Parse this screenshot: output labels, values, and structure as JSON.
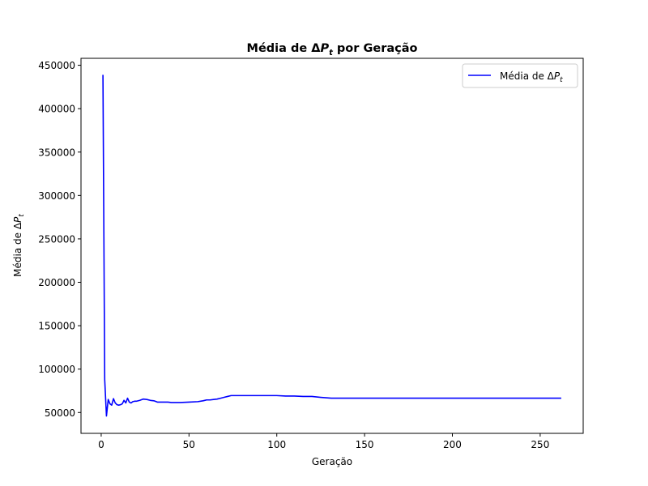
{
  "chart_data": {
    "type": "line",
    "title_prefix": "Média de Δ",
    "title_var": "P",
    "title_sub": "t",
    "title_suffix": " por Geração",
    "xlabel": "Geração",
    "ylabel_prefix": "Média de Δ",
    "ylabel_var": "P",
    "ylabel_sub": "t",
    "xlim": [
      -11.5,
      274.5
    ],
    "ylim": [
      26000,
      458000
    ],
    "xticks": [
      0,
      50,
      100,
      150,
      200,
      250
    ],
    "yticks": [
      50000,
      100000,
      150000,
      200000,
      250000,
      300000,
      350000,
      400000,
      450000
    ],
    "grid": false,
    "legend_position": "upper right",
    "series": [
      {
        "legend_prefix": "Média de Δ",
        "legend_var": "P",
        "legend_sub": "t",
        "color": "#0000ff",
        "x": [
          1,
          2,
          3,
          4,
          5,
          6,
          7,
          8,
          9,
          10,
          11,
          12,
          13,
          14,
          15,
          16,
          17,
          18,
          19,
          20,
          22,
          24,
          26,
          28,
          30,
          32,
          34,
          36,
          38,
          40,
          45,
          50,
          55,
          58,
          60,
          62,
          64,
          66,
          68,
          70,
          72,
          74,
          80,
          90,
          100,
          105,
          110,
          115,
          120,
          125,
          128,
          131,
          140,
          150,
          200,
          250,
          262
        ],
        "y": [
          439000,
          88000,
          46000,
          65000,
          60000,
          58500,
          66000,
          61000,
          59000,
          58500,
          59000,
          60000,
          64000,
          61000,
          66500,
          62000,
          61000,
          62500,
          63000,
          63000,
          64000,
          65500,
          65000,
          64000,
          63500,
          62000,
          62000,
          62000,
          62000,
          61500,
          61500,
          62000,
          62500,
          63500,
          64500,
          64500,
          65000,
          65500,
          66500,
          67500,
          68500,
          69500,
          69500,
          69500,
          69500,
          69000,
          69000,
          68500,
          68500,
          67500,
          67000,
          66500,
          66500,
          66500,
          66500,
          66500,
          66500
        ]
      }
    ]
  }
}
